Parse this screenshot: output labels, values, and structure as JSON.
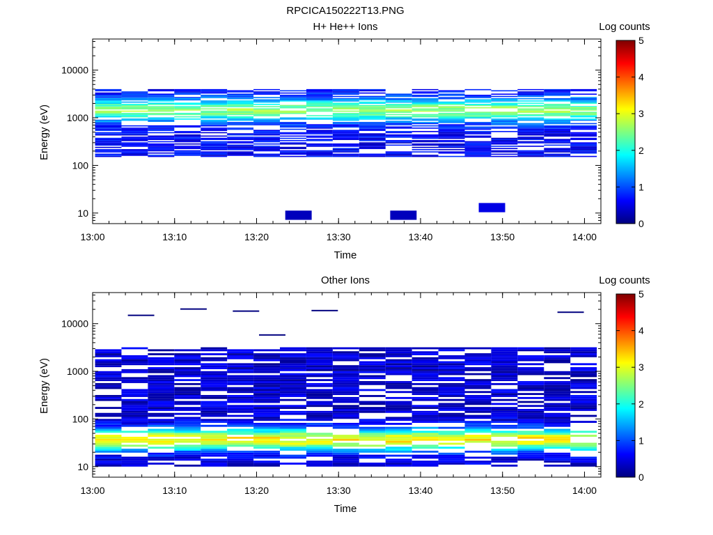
{
  "figure_title": "RPCICA150222T13.PNG",
  "colors": {
    "colormap": [
      "#00007f",
      "#0000ff",
      "#007fff",
      "#00ffff",
      "#7fff7f",
      "#ffff00",
      "#ff7f00",
      "#ff0000",
      "#7f0000"
    ],
    "background": "#ffffff",
    "axes": "#000000"
  },
  "chart_data": [
    {
      "type": "heatmap",
      "title": "H+ He++ Ions",
      "xlabel": "Time",
      "ylabel": "Energy (eV)",
      "y_scale": "log",
      "xlim": [
        "13:00",
        "14:02"
      ],
      "ylim": [
        6,
        45000
      ],
      "x_ticks": [
        "13:00",
        "13:10",
        "13:20",
        "13:30",
        "13:40",
        "13:50",
        "14:00"
      ],
      "y_ticks": [
        "10",
        "100",
        "1000",
        "10000"
      ],
      "colorbar": {
        "label": "Log counts",
        "range": [
          0,
          5
        ],
        "ticks": [
          "0",
          "1",
          "2",
          "3",
          "4",
          "5"
        ]
      },
      "band": {
        "low": 150,
        "high": 4000,
        "peak": 1400,
        "peak_level": 2.6,
        "base": 0.6
      },
      "low_patches": [
        {
          "t": "13:23.5",
          "energy": 9,
          "level": 0.3
        },
        {
          "t": "13:36.3",
          "energy": 9,
          "level": 0.3
        },
        {
          "t": "13:47.1",
          "energy": 13,
          "level": 0.5
        }
      ]
    },
    {
      "type": "heatmap",
      "title": "Other Ions",
      "xlabel": "Time",
      "ylabel": "Energy (eV)",
      "y_scale": "log",
      "xlim": [
        "13:00",
        "14:02"
      ],
      "ylim": [
        6,
        45000
      ],
      "x_ticks": [
        "13:00",
        "13:10",
        "13:20",
        "13:30",
        "13:40",
        "13:50",
        "14:00"
      ],
      "y_ticks": [
        "10",
        "100",
        "1000",
        "10000"
      ],
      "colorbar": {
        "label": "Log counts",
        "range": [
          0,
          5
        ],
        "ticks": [
          "0",
          "1",
          "2",
          "3",
          "4",
          "5"
        ]
      },
      "band": {
        "low": 10,
        "high": 3200,
        "peak": 35,
        "peak_level": 3.2,
        "base": 0.4
      },
      "high_lines": [
        {
          "t": "13:04.3",
          "energy": 15500
        },
        {
          "t": "13:10.7",
          "energy": 21000
        },
        {
          "t": "13:17.1",
          "energy": 19000
        },
        {
          "t": "13:20.3",
          "energy": 6000
        },
        {
          "t": "13:26.7",
          "energy": 19500
        },
        {
          "t": "13:56.7",
          "energy": 18000
        }
      ]
    }
  ]
}
